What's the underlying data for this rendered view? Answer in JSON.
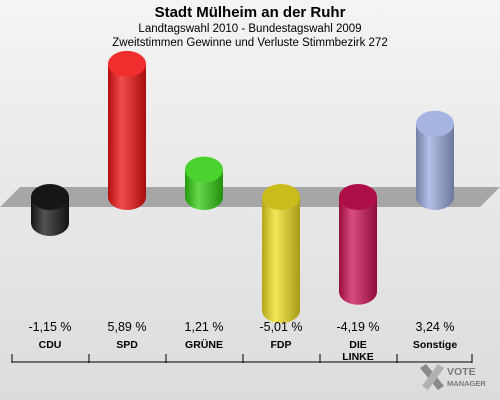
{
  "header": {
    "title": "Stadt Mülheim an der Ruhr",
    "subtitle1": "Landtagswahl 2010 - Bundestagswahl 2009",
    "subtitle2": "Zweitstimmen Gewinne und Verluste Stimmbezirk 272"
  },
  "chart_data": {
    "type": "bar",
    "title": "Stadt Mülheim an der Ruhr",
    "categories": [
      [
        "CDU"
      ],
      [
        "SPD"
      ],
      [
        "GRÜNE"
      ],
      [
        "FDP"
      ],
      [
        "DIE",
        "LINKE"
      ],
      [
        "Sonstige"
      ]
    ],
    "values": [
      -1.15,
      5.89,
      1.21,
      -5.01,
      -4.19,
      3.24
    ],
    "value_labels": [
      "-1,15 %",
      "5,89 %",
      "1,21 %",
      "-5,01 %",
      "-4,19 %",
      "3,24 %"
    ],
    "colors": [
      "#1a1a1a",
      "#ee1111",
      "#33cc11",
      "#eedd22",
      "#cc1155",
      "#99aadd"
    ],
    "ylim": [
      -6,
      7
    ],
    "grid": false,
    "legend": "none"
  },
  "logo": {
    "line1": "VOTE",
    "line2": "MANAGER"
  }
}
